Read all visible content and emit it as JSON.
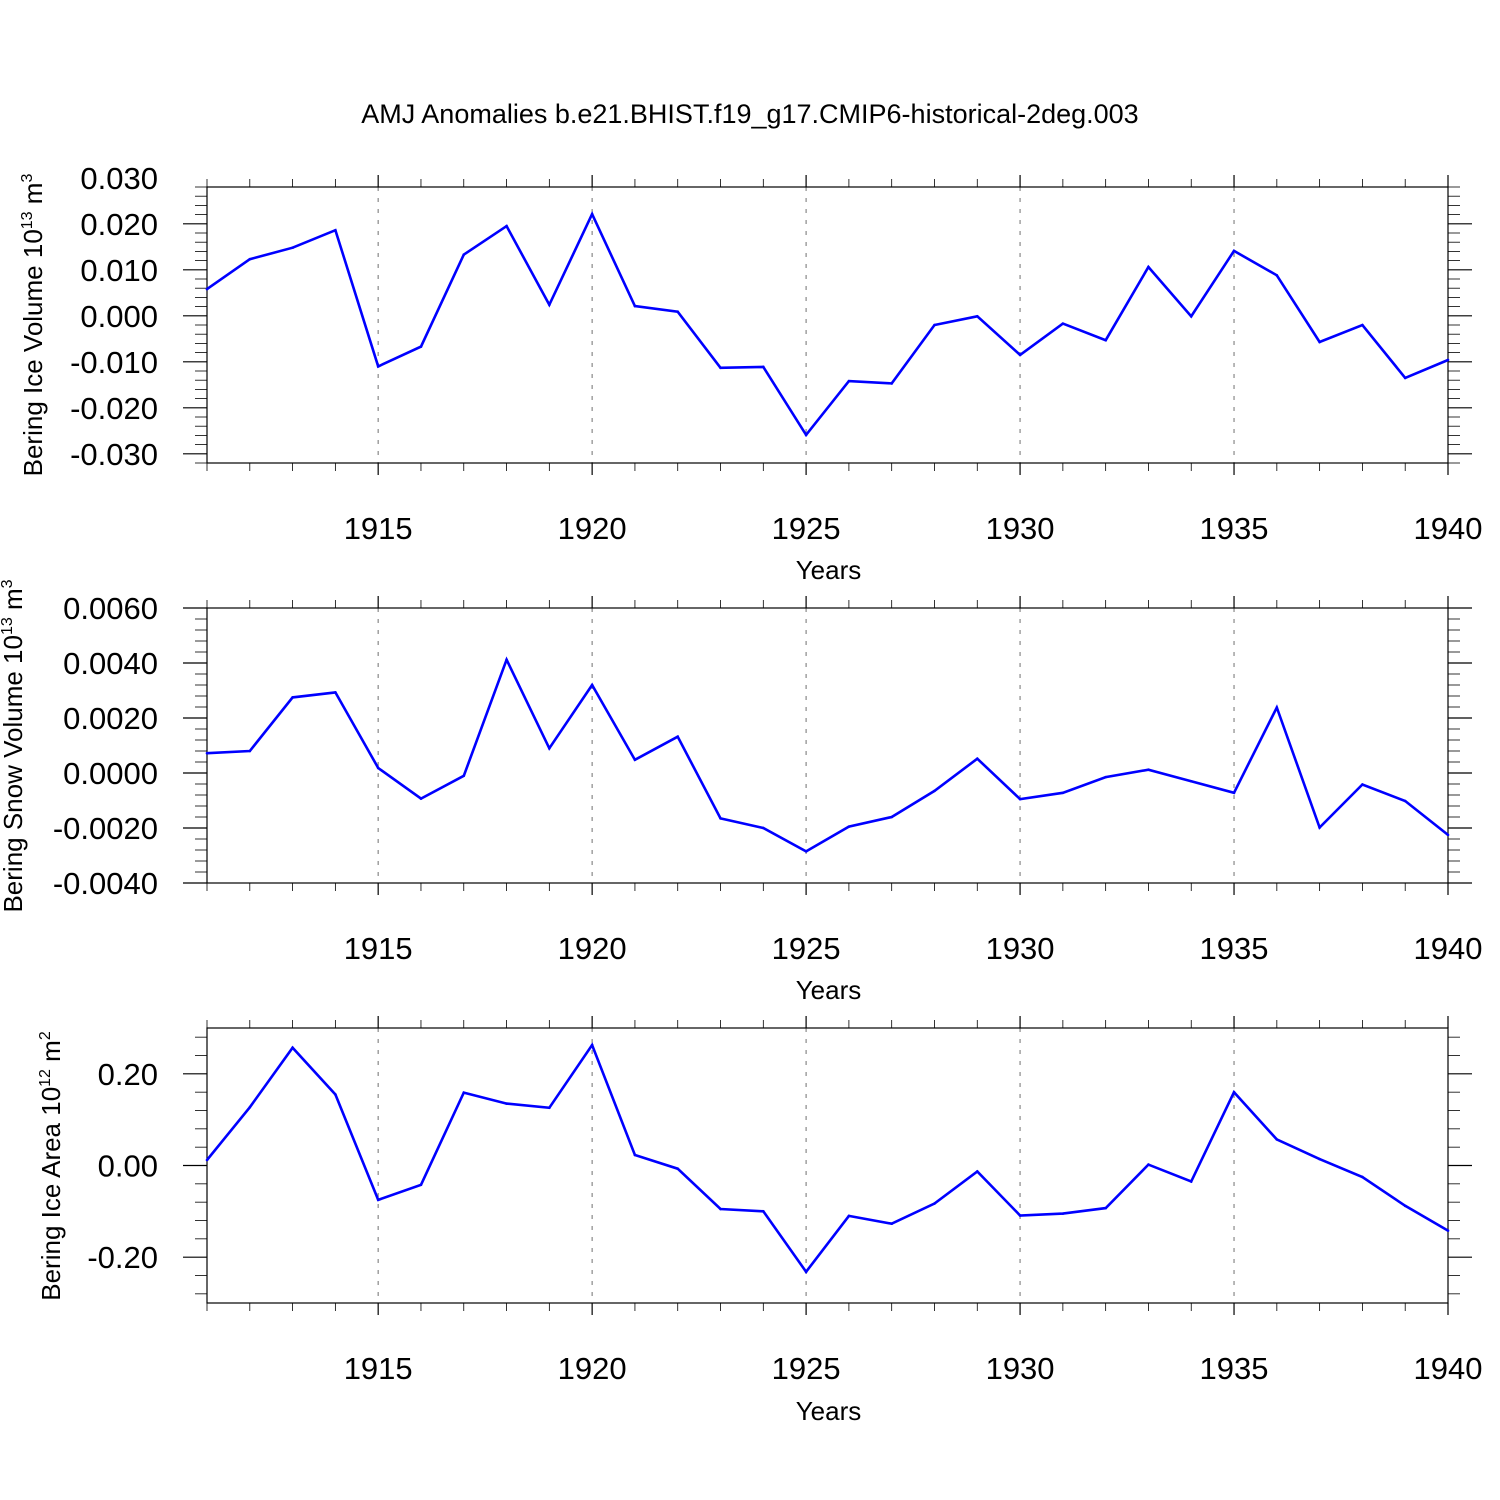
{
  "title": "AMJ Anomalies b.e21.BHIST.f19_g17.CMIP6-historical-2deg.003",
  "colors": {
    "series": "#0000ff",
    "axis": "#000000",
    "grid": "#888888"
  },
  "chart_data": [
    {
      "type": "line",
      "ylabel": "Bering Ice Volume",
      "yunit": "10",
      "yunit_exp": "13",
      "yunit_tail": "m",
      "yunit_tail_exp": "3",
      "xlabel": "Years",
      "xlim": [
        1911,
        1940
      ],
      "ylim": [
        -0.032,
        0.028
      ],
      "yticks": [
        0.03,
        0.02,
        0.01,
        0.0,
        -0.01,
        -0.02,
        -0.03
      ],
      "ytick_labels": [
        "0.030",
        "0.020",
        "0.010",
        "0.000",
        "-0.010",
        "-0.020",
        "-0.030"
      ],
      "xticks": [
        1915,
        1920,
        1925,
        1930,
        1935,
        1940
      ],
      "xtick_labels": [
        "1915",
        "1920",
        "1925",
        "1930",
        "1935",
        "1940"
      ],
      "grid": "vertical dashed at major x ticks",
      "x": [
        1911,
        1912,
        1913,
        1914,
        1915,
        1916,
        1917,
        1918,
        1919,
        1920,
        1921,
        1922,
        1923,
        1924,
        1925,
        1926,
        1927,
        1928,
        1929,
        1930,
        1931,
        1932,
        1933,
        1934,
        1935,
        1936,
        1937,
        1938,
        1939,
        1940
      ],
      "values": [
        0.0058,
        0.0123,
        0.0148,
        0.0186,
        -0.011,
        -0.0067,
        0.0133,
        0.0195,
        0.0024,
        0.0221,
        0.0021,
        0.0009,
        -0.0113,
        -0.0111,
        -0.0259,
        -0.0142,
        -0.0147,
        -0.002,
        -0.0001,
        -0.0085,
        -0.0017,
        -0.0053,
        0.0106,
        -0.0001,
        0.0141,
        0.0088,
        -0.0057,
        -0.002,
        -0.0135,
        -0.0096
      ]
    },
    {
      "type": "line",
      "ylabel": "Bering Snow Volume",
      "yunit": "10",
      "yunit_exp": "13",
      "yunit_tail": "m",
      "yunit_tail_exp": "3",
      "xlabel": "Years",
      "xlim": [
        1911,
        1940
      ],
      "ylim": [
        -0.004,
        0.006
      ],
      "yticks": [
        0.006,
        0.004,
        0.002,
        0.0,
        -0.002,
        -0.004
      ],
      "ytick_labels": [
        "0.0060",
        "0.0040",
        "0.0020",
        "0.0000",
        "-0.0020",
        "-0.0040"
      ],
      "xticks": [
        1915,
        1920,
        1925,
        1930,
        1935,
        1940
      ],
      "xtick_labels": [
        "1915",
        "1920",
        "1925",
        "1930",
        "1935",
        "1940"
      ],
      "grid": "vertical dashed at major x ticks",
      "x": [
        1911,
        1912,
        1913,
        1914,
        1915,
        1916,
        1917,
        1918,
        1919,
        1920,
        1921,
        1922,
        1923,
        1924,
        1925,
        1926,
        1927,
        1928,
        1929,
        1930,
        1931,
        1932,
        1933,
        1934,
        1935,
        1936,
        1937,
        1938,
        1939,
        1940
      ],
      "values": [
        0.00072,
        0.0008,
        0.00275,
        0.00293,
        0.00018,
        -0.00093,
        -0.0001,
        0.00412,
        0.0009,
        0.0032,
        0.00048,
        0.00132,
        -0.00165,
        -0.002,
        -0.00285,
        -0.00195,
        -0.0016,
        -0.00065,
        0.00052,
        -0.00095,
        -0.00072,
        -0.00015,
        0.00012,
        -0.0003,
        -0.00072,
        0.00238,
        -0.00198,
        -0.00042,
        -0.00102,
        -0.00225
      ]
    },
    {
      "type": "line",
      "ylabel": "Bering Ice Area",
      "yunit": "10",
      "yunit_exp": "12",
      "yunit_tail": "m",
      "yunit_tail_exp": "2",
      "xlabel": "Years",
      "xlim": [
        1911,
        1940
      ],
      "ylim": [
        -0.3,
        0.3
      ],
      "yticks": [
        0.2,
        0.0,
        -0.2
      ],
      "ytick_labels": [
        "0.20",
        "0.00",
        "-0.20"
      ],
      "xticks": [
        1915,
        1920,
        1925,
        1930,
        1935,
        1940
      ],
      "xtick_labels": [
        "1915",
        "1920",
        "1925",
        "1930",
        "1935",
        "1940"
      ],
      "grid": "vertical dashed at major x ticks",
      "x": [
        1911,
        1912,
        1913,
        1914,
        1915,
        1916,
        1917,
        1918,
        1919,
        1920,
        1921,
        1922,
        1923,
        1924,
        1925,
        1926,
        1927,
        1928,
        1929,
        1930,
        1931,
        1932,
        1933,
        1934,
        1935,
        1936,
        1937,
        1938,
        1939,
        1940
      ],
      "values": [
        0.012,
        0.127,
        0.257,
        0.155,
        -0.075,
        -0.042,
        0.159,
        0.135,
        0.126,
        0.263,
        0.023,
        -0.007,
        -0.095,
        -0.1,
        -0.232,
        -0.11,
        -0.127,
        -0.083,
        -0.013,
        -0.109,
        -0.105,
        -0.093,
        0.002,
        -0.035,
        0.16,
        0.057,
        0.014,
        -0.025,
        -0.088,
        -0.142
      ]
    }
  ]
}
